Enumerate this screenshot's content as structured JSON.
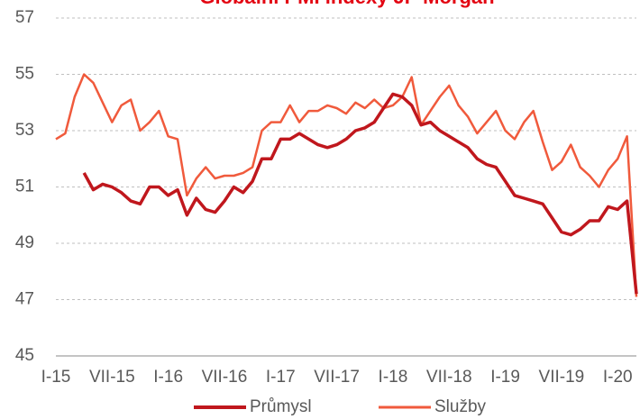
{
  "chart_data": {
    "type": "line",
    "title": "Globální PMI indexy JP Morgan",
    "categories": [
      "I-15",
      null,
      null,
      null,
      null,
      null,
      "VII-15",
      null,
      null,
      null,
      null,
      null,
      "I-16",
      null,
      null,
      null,
      null,
      null,
      "VII-16",
      null,
      null,
      null,
      null,
      null,
      "I-17",
      null,
      null,
      null,
      null,
      null,
      "VII-17",
      null,
      null,
      null,
      null,
      null,
      "I-18",
      null,
      null,
      null,
      null,
      null,
      "VII-18",
      null,
      null,
      null,
      null,
      null,
      "I-19",
      null,
      null,
      null,
      null,
      null,
      "VII-19",
      null,
      null,
      null,
      null,
      null,
      "I-20",
      null,
      null
    ],
    "series": [
      {
        "name": "Průmysl",
        "color": "#c0171d",
        "values": [
          null,
          null,
          null,
          51.5,
          50.9,
          51.1,
          51.0,
          50.8,
          50.5,
          50.4,
          51.0,
          51.0,
          50.7,
          50.9,
          50.0,
          50.6,
          50.2,
          50.1,
          50.5,
          51.0,
          50.8,
          51.2,
          52.0,
          52.0,
          52.7,
          52.7,
          52.9,
          52.7,
          52.5,
          52.4,
          52.5,
          52.7,
          53.0,
          53.1,
          53.3,
          53.8,
          54.3,
          54.2,
          53.9,
          53.2,
          53.3,
          53.0,
          52.8,
          52.6,
          52.4,
          52.0,
          51.8,
          51.7,
          51.2,
          50.7,
          50.6,
          50.5,
          50.4,
          49.9,
          49.4,
          49.3,
          49.5,
          49.8,
          49.8,
          50.3,
          50.2,
          50.5,
          47.2
        ]
      },
      {
        "name": "Služby",
        "color": "#f05a3c",
        "values": [
          52.7,
          52.9,
          54.2,
          55.0,
          54.7,
          54.0,
          53.3,
          53.9,
          54.1,
          53.0,
          53.3,
          53.7,
          52.8,
          52.7,
          50.7,
          51.3,
          51.7,
          51.3,
          51.4,
          51.4,
          51.5,
          51.7,
          53.0,
          53.3,
          53.3,
          53.9,
          53.3,
          53.7,
          53.7,
          53.9,
          53.8,
          53.6,
          54.0,
          53.8,
          54.1,
          53.8,
          53.9,
          54.2,
          54.9,
          53.2,
          53.7,
          54.2,
          54.6,
          53.9,
          53.5,
          52.9,
          53.3,
          53.7,
          53.0,
          52.7,
          53.3,
          53.7,
          52.6,
          51.6,
          51.9,
          52.5,
          51.7,
          51.4,
          51.0,
          51.6,
          52.0,
          52.8,
          47.1
        ]
      }
    ],
    "ylim": [
      45,
      57
    ],
    "yticks": [
      45,
      47,
      49,
      51,
      53,
      55,
      57
    ],
    "grid": true
  }
}
